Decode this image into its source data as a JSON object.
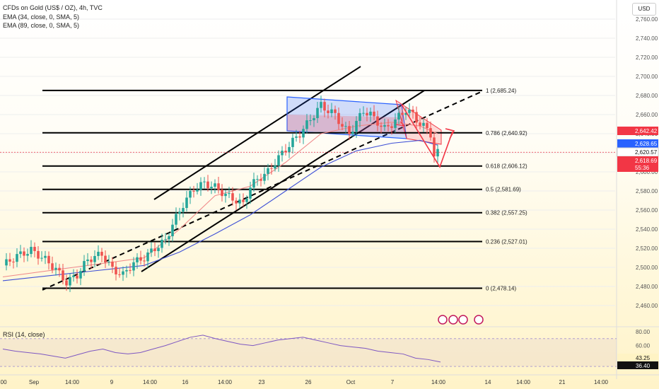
{
  "header": {
    "title": "CFDs on Gold (US$ / OZ), 4h, TVC",
    "ema1": "EMA (34, close, 0, SMA, 5)",
    "ema2": "EMA (89, close, 0, SMA, 5)",
    "currency": "USD",
    "rsi_label": "RSI (14, close)"
  },
  "colors": {
    "candle_up": "#26a69a",
    "candle_down": "#ef5350",
    "ema34": "#f08a8a",
    "ema89": "#3f51d6",
    "rsi": "#7e57c2",
    "accent_red": "#f23645",
    "accent_blue": "#2962ff"
  },
  "price_badges": [
    {
      "text": "2,642.42",
      "color": "#f23645"
    },
    {
      "text": "2,628.65",
      "color": "#2962ff"
    },
    {
      "text": "2,620.57",
      "color": "#ffffff"
    },
    {
      "text": "2,618.69",
      "color": "#f23645"
    },
    {
      "text": "55:36",
      "color": "#f23645"
    }
  ],
  "rsi_badges": [
    "43.25",
    "36.40"
  ],
  "chart_data": [
    {
      "type": "candlestick",
      "title": "CFDs on Gold (US$ / OZ), 4h, TVC",
      "ylim": [
        2448,
        2775
      ],
      "y_ticks": [
        "2,460.00",
        "2,480.00",
        "2,500.00",
        "2,520.00",
        "2,540.00",
        "2,560.00",
        "2,580.00",
        "2,600.00",
        "2,620.00",
        "2,640.00",
        "2,660.00",
        "2,680.00",
        "2,700.00",
        "2,720.00",
        "2,740.00",
        "2,760.00"
      ],
      "x_ticks": [
        ":00",
        "Sep",
        "14:00",
        "9",
        "14:00",
        "16",
        "14:00",
        "23",
        "26",
        "Oct",
        "7",
        "14:00",
        "14",
        "14:00",
        "21",
        "14:00"
      ],
      "price_path": [
        [
          0,
          2502
        ],
        [
          4,
          2512
        ],
        [
          8,
          2518
        ],
        [
          12,
          2508
        ],
        [
          15,
          2498
        ],
        [
          18,
          2484
        ],
        [
          21,
          2492
        ],
        [
          24,
          2508
        ],
        [
          28,
          2514
        ],
        [
          31,
          2498
        ],
        [
          34,
          2492
        ],
        [
          37,
          2505
        ],
        [
          40,
          2510
        ],
        [
          43,
          2520
        ],
        [
          46,
          2528
        ],
        [
          48,
          2545
        ],
        [
          51,
          2566
        ],
        [
          54,
          2582
        ],
        [
          57,
          2588
        ],
        [
          60,
          2584
        ],
        [
          63,
          2576
        ],
        [
          66,
          2570
        ],
        [
          68,
          2566
        ],
        [
          70,
          2585
        ],
        [
          72,
          2592
        ],
        [
          75,
          2600
        ],
        [
          78,
          2615
        ],
        [
          81,
          2628
        ],
        [
          84,
          2640
        ],
        [
          86,
          2650
        ],
        [
          88,
          2660
        ],
        [
          90,
          2670
        ],
        [
          92,
          2664
        ],
        [
          94,
          2660
        ],
        [
          96,
          2648
        ],
        [
          98,
          2640
        ],
        [
          100,
          2652
        ],
        [
          102,
          2664
        ],
        [
          104,
          2660
        ],
        [
          106,
          2652
        ],
        [
          108,
          2645
        ],
        [
          110,
          2650
        ],
        [
          112,
          2658
        ],
        [
          114,
          2665
        ],
        [
          116,
          2660
        ],
        [
          118,
          2650
        ],
        [
          120,
          2645
        ],
        [
          121,
          2640
        ],
        [
          122,
          2616
        ],
        [
          123,
          2620
        ]
      ],
      "ema34": [
        [
          0,
          2490
        ],
        [
          20,
          2500
        ],
        [
          40,
          2510
        ],
        [
          50,
          2540
        ],
        [
          60,
          2575
        ],
        [
          70,
          2585
        ],
        [
          80,
          2610
        ],
        [
          90,
          2640
        ],
        [
          100,
          2648
        ],
        [
          110,
          2652
        ],
        [
          118,
          2648
        ],
        [
          123,
          2640
        ]
      ],
      "ema89": [
        [
          0,
          2486
        ],
        [
          20,
          2494
        ],
        [
          40,
          2502
        ],
        [
          50,
          2516
        ],
        [
          60,
          2535
        ],
        [
          70,
          2555
        ],
        [
          80,
          2580
        ],
        [
          90,
          2605
        ],
        [
          100,
          2622
        ],
        [
          110,
          2630
        ],
        [
          118,
          2633
        ],
        [
          123,
          2628
        ]
      ],
      "fibonacci": [
        {
          "label": "1 (2,685.24)",
          "level": 2685.24
        },
        {
          "label": "0.786 (2,640.92)",
          "level": 2640.92
        },
        {
          "label": "0.618 (2,606.12)",
          "level": 2606.12
        },
        {
          "label": "0.5 (2,581.69)",
          "level": 2581.69
        },
        {
          "label": "0.382 (2,557.25)",
          "level": 2557.25
        },
        {
          "label": "0.236 (2,527.01)",
          "level": 2527.01
        },
        {
          "label": "0 (2,478.14)",
          "level": 2478.14
        }
      ]
    },
    {
      "type": "line",
      "title": "RSI (14, close)",
      "ylim": [
        20,
        85
      ],
      "y_ticks": [
        "80.00",
        "60.00"
      ],
      "values": [
        55,
        52,
        50,
        48,
        45,
        42,
        47,
        52,
        55,
        50,
        48,
        50,
        55,
        60,
        66,
        72,
        75,
        70,
        66,
        62,
        60,
        64,
        68,
        70,
        72,
        68,
        64,
        60,
        58,
        56,
        52,
        50,
        48,
        42,
        40,
        36.4
      ]
    }
  ]
}
